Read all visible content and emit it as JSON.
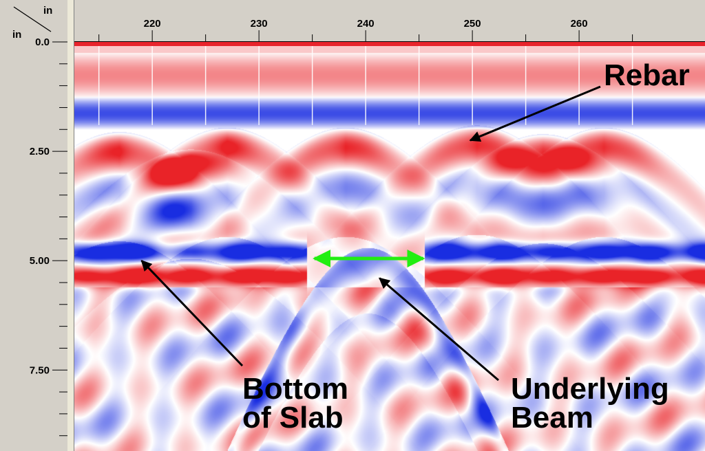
{
  "chart_data": {
    "type": "heatmap",
    "title": "",
    "corner_label": {
      "top": "in",
      "left": "in"
    },
    "x_axis": {
      "unit": "in",
      "range": [
        212.7,
        271.8
      ],
      "major_ticks": [
        {
          "value": 220,
          "label": "220"
        },
        {
          "value": 230,
          "label": "230"
        },
        {
          "value": 240,
          "label": "240"
        },
        {
          "value": 250,
          "label": "250"
        },
        {
          "value": 260,
          "label": "260"
        }
      ],
      "minor_ticks": [
        215,
        225,
        235,
        245,
        255,
        265
      ]
    },
    "y_axis": {
      "unit": "in",
      "range": [
        0,
        9.35
      ],
      "major_ticks": [
        {
          "value": 0,
          "label": "0.0"
        },
        {
          "value": 2.5,
          "label": "2.50"
        },
        {
          "value": 5.0,
          "label": "5.00"
        },
        {
          "value": 7.5,
          "label": "7.50"
        }
      ],
      "minor_step": 0.5
    },
    "colors": {
      "positive": "#e8242c",
      "negative": "#1a2ee0",
      "neutral": "#ffffff",
      "arrow_accent": "#22ee11",
      "surface_line": "#e8242c"
    },
    "features": {
      "rebar_hyperbolas": [
        {
          "x": 216.9,
          "apex_depth": 2.55
        },
        {
          "x": 223.6,
          "apex_depth": 2.95
        },
        {
          "x": 227.0,
          "apex_depth": 2.45
        },
        {
          "x": 238.1,
          "apex_depth": 2.45
        },
        {
          "x": 250.4,
          "apex_depth": 2.4
        },
        {
          "x": 256.6,
          "apex_depth": 2.6
        },
        {
          "x": 262.3,
          "apex_depth": 2.45
        }
      ],
      "slab_bottom": {
        "depth": 4.8,
        "gap_from_x": 234.5,
        "gap_to_x": 245.5
      },
      "beam": {
        "x": 240.2,
        "apex_depth": 5.0
      }
    },
    "annotations": [
      {
        "text_lines": [
          "Rebar"
        ],
        "points_to": {
          "x": 249.8,
          "depth": 2.25
        }
      },
      {
        "text_lines": [
          "Bottom",
          "of Slab"
        ],
        "points_to": {
          "x": 219.0,
          "depth": 5.0
        }
      },
      {
        "text_lines": [
          "Underlying",
          "Beam"
        ],
        "points_to": {
          "x": 241.3,
          "depth": 5.4
        }
      }
    ],
    "span_arrow": {
      "from_x": 235.2,
      "to_x": 245.4,
      "depth": 4.95
    }
  }
}
